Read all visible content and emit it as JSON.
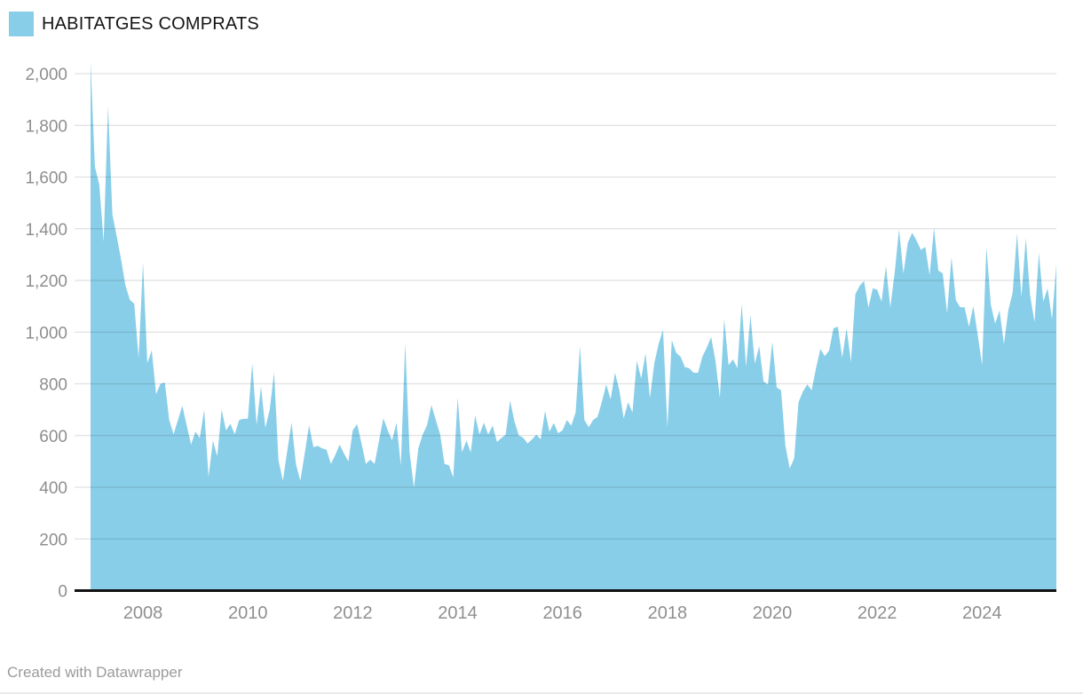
{
  "legend": {
    "series_label": "HABITATGES COMPRATS"
  },
  "footer": {
    "credit": "Created with Datawrapper"
  },
  "colors": {
    "area_fill": "#89CEE8",
    "gridline": "rgba(0,0,0,0.12)",
    "axis_line": "#111111",
    "tick_text": "#8f8f8f",
    "legend_text": "#151515"
  },
  "chart_data": {
    "type": "area",
    "title": "HABITATGES COMPRATS",
    "legend_position": "top-left",
    "grid": true,
    "x_start": "2007-01",
    "x_end": "2025-06",
    "frequency": "monthly",
    "xlabel": "",
    "ylabel": "",
    "ylim": [
      0,
      2000
    ],
    "y_ticks": [
      0,
      200,
      400,
      600,
      800,
      1000,
      1200,
      1400,
      1600,
      1800,
      2000
    ],
    "y_tick_labels": [
      "0",
      "200",
      "400",
      "600",
      "800",
      "1,000",
      "1,200",
      "1,400",
      "1,600",
      "1,800",
      "2,000"
    ],
    "x_tick_years": [
      2008,
      2010,
      2012,
      2014,
      2016,
      2018,
      2020,
      2022,
      2024
    ],
    "x_tick_labels": [
      "2008",
      "2010",
      "2012",
      "2014",
      "2016",
      "2018",
      "2020",
      "2022",
      "2024"
    ],
    "series": [
      {
        "name": "HABITATGES COMPRATS",
        "values": [
          2049,
          1640,
          1570,
          1350,
          1875,
          1455,
          1370,
          1280,
          1180,
          1125,
          1110,
          900,
          1270,
          880,
          930,
          760,
          800,
          805,
          660,
          605,
          660,
          715,
          640,
          565,
          615,
          590,
          700,
          440,
          580,
          520,
          700,
          620,
          645,
          605,
          660,
          665,
          665,
          880,
          640,
          790,
          630,
          700,
          845,
          505,
          425,
          540,
          650,
          490,
          425,
          530,
          640,
          555,
          560,
          550,
          545,
          490,
          525,
          565,
          530,
          500,
          620,
          644,
          570,
          490,
          507,
          490,
          580,
          667,
          620,
          581,
          650,
          484,
          958,
          535,
          398,
          550,
          604,
          640,
          718,
          660,
          604,
          490,
          485,
          438,
          747,
          535,
          581,
          535,
          678,
          604,
          650,
          604,
          638,
          575,
          590,
          604,
          735,
          655,
          600,
          592,
          569,
          585,
          603,
          586,
          695,
          615,
          649,
          609,
          620,
          660,
          638,
          690,
          946,
          660,
          632,
          660,
          672,
          730,
          798,
          740,
          843,
          775,
          666,
          729,
          689,
          889,
          820,
          918,
          746,
          880,
          955,
          1009,
          632,
          969,
          920,
          905,
          865,
          860,
          843,
          843,
          905,
          940,
          981,
          889,
          746,
          1051,
          872,
          895,
          861,
          1109,
          866,
          1066,
          878,
          946,
          809,
          798,
          963,
          786,
          775,
          560,
          472,
          512,
          729,
          770,
          798,
          775,
          860,
          935,
          907,
          929,
          1015,
          1021,
          901,
          1015,
          884,
          1147,
          1180,
          1198,
          1095,
          1170,
          1164,
          1118,
          1256,
          1096,
          1230,
          1398,
          1227,
          1345,
          1384,
          1355,
          1318,
          1330,
          1221,
          1404,
          1238,
          1227,
          1073,
          1290,
          1124,
          1096,
          1096,
          1021,
          1101,
          990,
          873,
          1330,
          1107,
          1033,
          1084,
          953,
          1084,
          1153,
          1382,
          1136,
          1364,
          1141,
          1039,
          1307,
          1118,
          1170,
          1050,
          1262
        ]
      }
    ]
  }
}
